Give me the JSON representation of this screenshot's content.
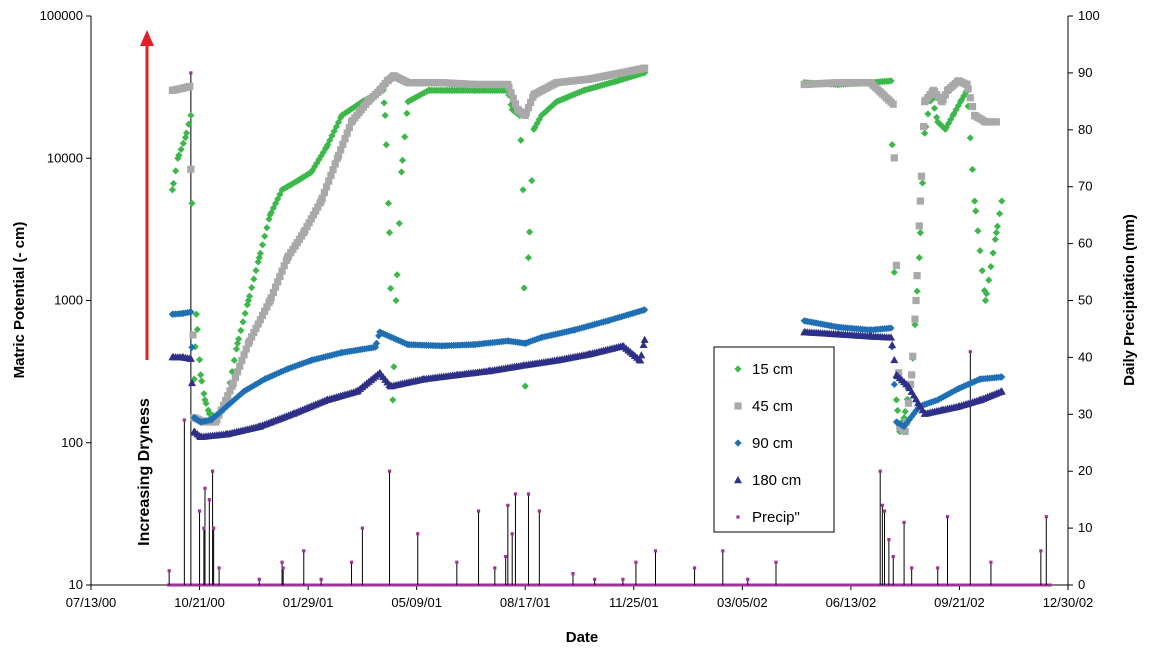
{
  "chart_data": {
    "type": "scatter",
    "title": "",
    "xlabel": "Date",
    "ylabel_left": "Matric Potential (- cm)",
    "ylabel_right": "Daily Precipitation (mm)",
    "annotation": "Increasing Dryness",
    "y_left_scale": "log",
    "y_left_range": [
      10,
      100000
    ],
    "y_right_range": [
      0,
      100
    ],
    "x_range": [
      "2000-07-13",
      "2002-12-30"
    ],
    "x_tick_labels": [
      "07/13/00",
      "10/21/00",
      "01/29/01",
      "05/09/01",
      "08/17/01",
      "11/25/01",
      "03/05/02",
      "06/13/02",
      "09/21/02",
      "12/30/02"
    ],
    "y_left_tick_labels": [
      "10",
      "100",
      "1000",
      "10000",
      "100000"
    ],
    "y_right_tick_labels": [
      "0",
      "10",
      "20",
      "30",
      "40",
      "50",
      "60",
      "70",
      "80",
      "90",
      "100"
    ],
    "grid": false,
    "legend_position": "center-right",
    "colors": {
      "15 cm": "#3cb84a",
      "45 cm": "#a9a9a9",
      "90 cm": "#1f6fb4",
      "180 cm": "#2e2f86",
      "Precip": "#a0309a",
      "arrow": "#e41e26"
    },
    "series": [
      {
        "name": "15 cm",
        "marker": "diamond",
        "points": [
          [
            "2000-09-26",
            6000
          ],
          [
            "2000-10-01",
            10000
          ],
          [
            "2000-10-08",
            14000
          ],
          [
            "2000-10-13",
            20000
          ],
          [
            "2000-10-16",
            280
          ],
          [
            "2000-10-18",
            800
          ],
          [
            "2000-10-22",
            300
          ],
          [
            "2000-10-26",
            200
          ],
          [
            "2000-10-30",
            160
          ],
          [
            "2000-11-07",
            150
          ],
          [
            "2000-11-15",
            200
          ],
          [
            "2000-11-25",
            500
          ],
          [
            "2000-12-05",
            1000
          ],
          [
            "2000-12-15",
            2000
          ],
          [
            "2000-12-25",
            4000
          ],
          [
            "2001-01-05",
            6000
          ],
          [
            "2001-01-20",
            7000
          ],
          [
            "2001-02-01",
            8000
          ],
          [
            "2001-02-15",
            12000
          ],
          [
            "2001-03-01",
            20000
          ],
          [
            "2001-03-20",
            25000
          ],
          [
            "2001-04-01",
            28000
          ],
          [
            "2001-04-08",
            30000
          ],
          [
            "2001-04-10",
            20000
          ],
          [
            "2001-04-14",
            3000
          ],
          [
            "2001-04-17",
            200
          ],
          [
            "2001-04-20",
            1000
          ],
          [
            "2001-04-25",
            8000
          ],
          [
            "2001-05-01",
            25000
          ],
          [
            "2001-05-20",
            30000
          ],
          [
            "2001-06-10",
            30000
          ],
          [
            "2001-07-01",
            30000
          ],
          [
            "2001-08-01",
            30000
          ],
          [
            "2001-08-05",
            22000
          ],
          [
            "2001-08-12",
            20000
          ],
          [
            "2001-08-15",
            6000
          ],
          [
            "2001-08-17",
            250
          ],
          [
            "2001-08-20",
            2000
          ],
          [
            "2001-08-25",
            16000
          ],
          [
            "2001-09-01",
            20000
          ],
          [
            "2001-09-15",
            25000
          ],
          [
            "2001-10-10",
            30000
          ],
          [
            "2001-11-10",
            35000
          ],
          [
            "2001-12-05",
            40000
          ],
          [
            "2002-05-01",
            34000
          ],
          [
            "2002-06-01",
            33000
          ],
          [
            "2002-07-01",
            34000
          ],
          [
            "2002-07-20",
            35000
          ],
          [
            "2002-07-25",
            200
          ],
          [
            "2002-07-28",
            120
          ],
          [
            "2002-08-01",
            150
          ],
          [
            "2002-08-08",
            300
          ],
          [
            "2002-08-15",
            2000
          ],
          [
            "2002-08-20",
            15000
          ],
          [
            "2002-08-26",
            28000
          ],
          [
            "2002-09-01",
            18000
          ],
          [
            "2002-09-08",
            16000
          ],
          [
            "2002-09-15",
            20000
          ],
          [
            "2002-09-22",
            25000
          ],
          [
            "2002-09-28",
            30000
          ],
          [
            "2002-10-05",
            5000
          ],
          [
            "2002-10-15",
            1000
          ],
          [
            "2002-10-25",
            3000
          ],
          [
            "2002-10-30",
            5000
          ]
        ]
      },
      {
        "name": "45 cm",
        "marker": "square",
        "points": [
          [
            "2000-09-26",
            30000
          ],
          [
            "2000-10-05",
            31000
          ],
          [
            "2000-10-12",
            32000
          ],
          [
            "2000-10-16",
            150
          ],
          [
            "2000-10-25",
            140
          ],
          [
            "2000-11-05",
            140
          ],
          [
            "2000-11-20",
            250
          ],
          [
            "2000-12-05",
            500
          ],
          [
            "2000-12-25",
            1000
          ],
          [
            "2001-01-10",
            2000
          ],
          [
            "2001-01-25",
            3000
          ],
          [
            "2001-02-10",
            5000
          ],
          [
            "2001-02-25",
            10000
          ],
          [
            "2001-03-10",
            18000
          ],
          [
            "2001-03-25",
            25000
          ],
          [
            "2001-04-05",
            30000
          ],
          [
            "2001-04-12",
            35000
          ],
          [
            "2001-04-18",
            38000
          ],
          [
            "2001-05-01",
            34000
          ],
          [
            "2001-06-01",
            34000
          ],
          [
            "2001-07-01",
            33000
          ],
          [
            "2001-08-01",
            33000
          ],
          [
            "2001-08-10",
            22000
          ],
          [
            "2001-08-17",
            20000
          ],
          [
            "2001-08-25",
            28000
          ],
          [
            "2001-09-15",
            34000
          ],
          [
            "2001-10-15",
            36000
          ],
          [
            "2001-11-15",
            40000
          ],
          [
            "2001-12-05",
            43000
          ],
          [
            "2002-05-01",
            33000
          ],
          [
            "2002-06-01",
            34000
          ],
          [
            "2002-07-01",
            34000
          ],
          [
            "2002-07-22",
            24000
          ],
          [
            "2002-07-28",
            130
          ],
          [
            "2002-08-02",
            120
          ],
          [
            "2002-08-08",
            300
          ],
          [
            "2002-08-12",
            1000
          ],
          [
            "2002-08-16",
            5000
          ],
          [
            "2002-08-20",
            25000
          ],
          [
            "2002-08-28",
            30000
          ],
          [
            "2002-09-05",
            25000
          ],
          [
            "2002-09-10",
            30000
          ],
          [
            "2002-09-20",
            35000
          ],
          [
            "2002-09-28",
            33000
          ],
          [
            "2002-10-05",
            20000
          ],
          [
            "2002-10-15",
            18000
          ],
          [
            "2002-10-25",
            18000
          ]
        ]
      },
      {
        "name": "90 cm",
        "marker": "diamond",
        "points": [
          [
            "2000-09-26",
            800
          ],
          [
            "2000-10-05",
            810
          ],
          [
            "2000-10-13",
            830
          ],
          [
            "2000-10-16",
            150
          ],
          [
            "2000-10-22",
            140
          ],
          [
            "2000-11-01",
            145
          ],
          [
            "2000-11-15",
            180
          ],
          [
            "2000-12-01",
            230
          ],
          [
            "2000-12-20",
            280
          ],
          [
            "2001-01-10",
            330
          ],
          [
            "2001-02-01",
            380
          ],
          [
            "2001-03-01",
            430
          ],
          [
            "2001-04-01",
            470
          ],
          [
            "2001-04-05",
            600
          ],
          [
            "2001-05-01",
            490
          ],
          [
            "2001-06-01",
            480
          ],
          [
            "2001-07-01",
            490
          ],
          [
            "2001-08-01",
            520
          ],
          [
            "2001-08-17",
            500
          ],
          [
            "2001-09-01",
            550
          ],
          [
            "2001-10-01",
            620
          ],
          [
            "2001-11-01",
            720
          ],
          [
            "2001-12-05",
            860
          ],
          [
            "2002-05-01",
            720
          ],
          [
            "2002-06-01",
            650
          ],
          [
            "2002-07-01",
            620
          ],
          [
            "2002-07-20",
            640
          ],
          [
            "2002-07-25",
            140
          ],
          [
            "2002-08-01",
            130
          ],
          [
            "2002-08-15",
            180
          ],
          [
            "2002-09-01",
            200
          ],
          [
            "2002-09-20",
            240
          ],
          [
            "2002-10-10",
            280
          ],
          [
            "2002-10-30",
            290
          ]
        ]
      },
      {
        "name": "180 cm",
        "marker": "triangle",
        "points": [
          [
            "2000-09-26",
            400
          ],
          [
            "2000-10-05",
            400
          ],
          [
            "2000-10-13",
            390
          ],
          [
            "2000-10-16",
            120
          ],
          [
            "2000-10-22",
            110
          ],
          [
            "2000-11-15",
            115
          ],
          [
            "2000-12-15",
            130
          ],
          [
            "2001-01-15",
            160
          ],
          [
            "2001-02-15",
            200
          ],
          [
            "2001-03-15",
            230
          ],
          [
            "2001-04-05",
            310
          ],
          [
            "2001-04-15",
            250
          ],
          [
            "2001-05-15",
            280
          ],
          [
            "2001-06-15",
            300
          ],
          [
            "2001-07-15",
            320
          ],
          [
            "2001-08-15",
            350
          ],
          [
            "2001-09-15",
            380
          ],
          [
            "2001-10-15",
            420
          ],
          [
            "2001-11-15",
            480
          ],
          [
            "2001-12-01",
            380
          ],
          [
            "2001-12-05",
            530
          ],
          [
            "2002-05-01",
            600
          ],
          [
            "2002-06-01",
            580
          ],
          [
            "2002-07-01",
            560
          ],
          [
            "2002-07-20",
            550
          ],
          [
            "2002-07-25",
            300
          ],
          [
            "2002-08-05",
            250
          ],
          [
            "2002-08-20",
            160
          ],
          [
            "2002-09-05",
            170
          ],
          [
            "2002-09-20",
            180
          ],
          [
            "2002-10-10",
            200
          ],
          [
            "2002-10-30",
            230
          ]
        ]
      },
      {
        "name": "Precip\"",
        "marker": "square-small",
        "points": [
          [
            "2000-09-23",
            2.5
          ],
          [
            "2000-10-07",
            29
          ],
          [
            "2000-10-13",
            90
          ],
          [
            "2000-10-21",
            13
          ],
          [
            "2000-10-25",
            10
          ],
          [
            "2000-10-26",
            17
          ],
          [
            "2000-10-30",
            15
          ],
          [
            "2000-11-02",
            20
          ],
          [
            "2000-11-03",
            10
          ],
          [
            "2000-11-08",
            3
          ],
          [
            "2000-12-15",
            1
          ],
          [
            "2001-01-05",
            4
          ],
          [
            "2001-01-06",
            3
          ],
          [
            "2001-01-25",
            6
          ],
          [
            "2001-02-10",
            1
          ],
          [
            "2001-03-10",
            4
          ],
          [
            "2001-03-20",
            10
          ],
          [
            "2001-04-14",
            20
          ],
          [
            "2001-05-10",
            9
          ],
          [
            "2001-06-15",
            4
          ],
          [
            "2001-07-05",
            13
          ],
          [
            "2001-07-20",
            3
          ],
          [
            "2001-07-30",
            5
          ],
          [
            "2001-08-01",
            14
          ],
          [
            "2001-08-05",
            9
          ],
          [
            "2001-08-08",
            16
          ],
          [
            "2001-08-20",
            16
          ],
          [
            "2001-08-30",
            13
          ],
          [
            "2001-09-30",
            2
          ],
          [
            "2001-10-20",
            1
          ],
          [
            "2001-11-15",
            1
          ],
          [
            "2001-11-27",
            4
          ],
          [
            "2001-12-15",
            6
          ],
          [
            "2002-01-20",
            3
          ],
          [
            "2002-02-15",
            6
          ],
          [
            "2002-03-10",
            1
          ],
          [
            "2002-04-05",
            4
          ],
          [
            "2002-07-10",
            20
          ],
          [
            "2002-07-12",
            14
          ],
          [
            "2002-07-14",
            13
          ],
          [
            "2002-07-18",
            8
          ],
          [
            "2002-07-22",
            5
          ],
          [
            "2002-08-01",
            11
          ],
          [
            "2002-08-08",
            3
          ],
          [
            "2002-09-01",
            3
          ],
          [
            "2002-09-10",
            12
          ],
          [
            "2002-10-01",
            41
          ],
          [
            "2002-10-20",
            4
          ],
          [
            "2002-12-05",
            6
          ],
          [
            "2002-12-10",
            12
          ]
        ]
      }
    ]
  }
}
